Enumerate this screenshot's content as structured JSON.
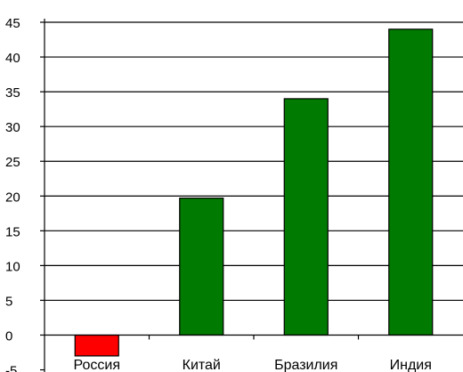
{
  "chart_data": {
    "type": "bar",
    "title": "",
    "xlabel": "",
    "ylabel": "",
    "categories": [
      "Россия",
      "Китай",
      "Бразилия",
      "Индия"
    ],
    "values": [
      -3,
      19.7,
      34,
      44
    ],
    "colors": [
      "#ff0000",
      "#007a00",
      "#007a00",
      "#007a00"
    ],
    "ylim": [
      -5,
      45
    ],
    "yticks": [
      -5,
      0,
      5,
      10,
      15,
      20,
      25,
      30,
      35,
      40,
      45
    ],
    "grid": true,
    "legend": "none"
  }
}
